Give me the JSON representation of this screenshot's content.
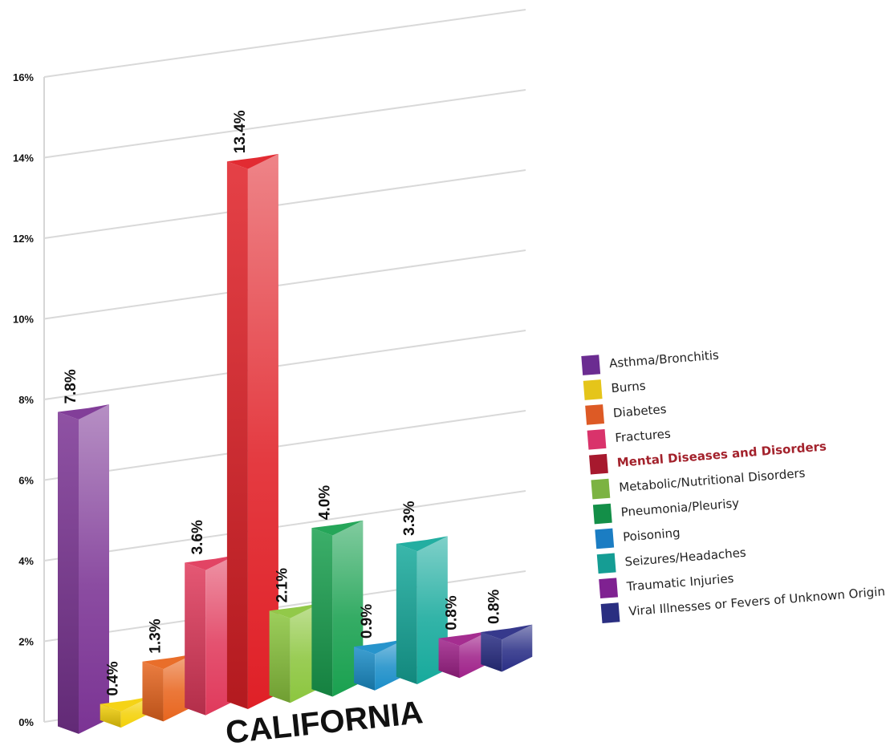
{
  "chart_data": {
    "type": "bar",
    "title": "CALIFORNIA",
    "xlabel": "",
    "ylabel": "",
    "ylim": [
      0,
      16
    ],
    "y_ticks": [
      "0%",
      "2%",
      "4%",
      "6%",
      "8%",
      "10%",
      "12%",
      "14%",
      "16%"
    ],
    "grid": true,
    "legend_position": "right",
    "highlighted_category": "Mental Diseases and Disorders",
    "categories": [
      "Asthma/Bronchitis",
      "Burns",
      "Diabetes",
      "Fractures",
      "Mental Diseases and Disorders",
      "Metabolic/Nutritional Disorders",
      "Pneumonia/Pleurisy",
      "Poisoning",
      "Seizures/Headaches",
      "Traumatic Injuries",
      "Viral Illnesses or Fevers of Unknown Origin"
    ],
    "values": [
      7.8,
      0.4,
      1.3,
      3.6,
      13.4,
      2.1,
      4.0,
      0.9,
      3.3,
      0.8,
      0.8
    ],
    "data_labels": [
      "7.8%",
      "0.4%",
      "1.3%",
      "3.6%",
      "13.4%",
      "2.1%",
      "4.0%",
      "0.9%",
      "3.3%",
      "0.8%",
      "0.8%"
    ],
    "colors": [
      "#7b3494",
      "#f4d10a",
      "#e8661f",
      "#e03a5c",
      "#e02027",
      "#8cc63f",
      "#1aa150",
      "#1c8ec9",
      "#17aa9c",
      "#a0228a",
      "#2b2f86"
    ],
    "legend_colors": [
      "#6b2c91",
      "#e5c51a",
      "#dd5a25",
      "#d9336b",
      "#a7192e",
      "#7cb342",
      "#138f48",
      "#1b7dc3",
      "#159d94",
      "#7f2191",
      "#2a2e81"
    ]
  }
}
